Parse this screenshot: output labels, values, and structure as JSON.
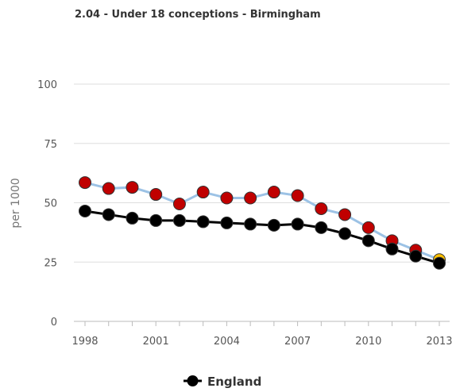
{
  "chart_data": {
    "type": "line",
    "title": "2.04 - Under 18 conceptions - Birmingham",
    "xlabel": "",
    "ylabel": "per 1000",
    "ylim": [
      0,
      100
    ],
    "yticks": [
      0,
      25,
      50,
      75,
      100
    ],
    "xlim": [
      1998,
      2013
    ],
    "xticks": [
      1998,
      2001,
      2004,
      2007,
      2010,
      2013
    ],
    "x": [
      1998,
      1999,
      2000,
      2001,
      2002,
      2003,
      2004,
      2005,
      2006,
      2007,
      2008,
      2009,
      2010,
      2011,
      2012,
      2013
    ],
    "grid": true,
    "legend_position": "bottom",
    "series": [
      {
        "name": "",
        "line_color": "#9cc2e5",
        "marker_color": "#c00000",
        "marker_colors": [
          "#c00000",
          "#c00000",
          "#c00000",
          "#c00000",
          "#c00000",
          "#c00000",
          "#c00000",
          "#c00000",
          "#c00000",
          "#c00000",
          "#c00000",
          "#c00000",
          "#c00000",
          "#c00000",
          "#c00000",
          "#ffc000"
        ],
        "values": [
          58.5,
          56,
          56.5,
          53.5,
          49.5,
          54.5,
          52,
          52,
          54.5,
          53,
          47.5,
          45,
          39.5,
          34,
          30,
          26
        ]
      },
      {
        "name": "England",
        "line_color": "#000000",
        "marker_color": "#000000",
        "values": [
          46.5,
          45,
          43.5,
          42.5,
          42.5,
          42,
          41.5,
          41,
          40.5,
          41,
          39.5,
          37,
          34,
          30.5,
          27.5,
          24.5
        ]
      }
    ]
  }
}
